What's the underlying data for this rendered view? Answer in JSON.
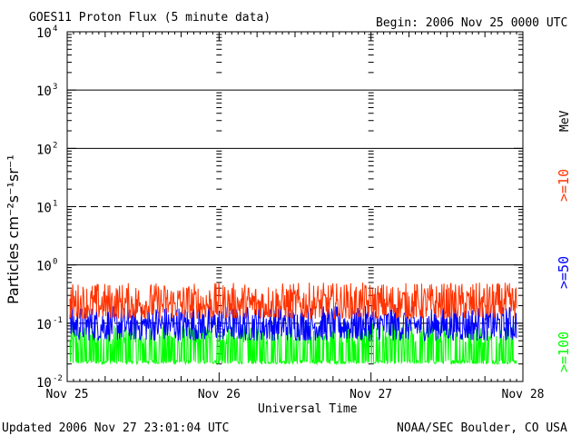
{
  "chart_data": {
    "type": "line",
    "title": "GOES11 Proton Flux (5 minute data)",
    "begin": "Begin: 2006 Nov 25 0000 UTC",
    "xlabel": "Universal Time",
    "ylabel": "Particles cm⁻²s⁻¹sr⁻¹",
    "yscale": "log",
    "ylim": [
      0.01,
      10000
    ],
    "y_ticks": [
      {
        "base": "10",
        "exp": "-2"
      },
      {
        "base": "10",
        "exp": "-1"
      },
      {
        "base": "10",
        "exp": "0"
      },
      {
        "base": "10",
        "exp": "1"
      },
      {
        "base": "10",
        "exp": "2"
      },
      {
        "base": "10",
        "exp": "3"
      },
      {
        "base": "10",
        "exp": "4"
      }
    ],
    "x_ticks": [
      "Nov 25",
      "Nov 26",
      "Nov 27",
      "Nov 28"
    ],
    "xlim": [
      "2006-11-25",
      "2006-11-28"
    ],
    "unit_label": "MeV",
    "series": [
      {
        "name": ">=10",
        "color": "#ff3300",
        "typical_range": [
          0.12,
          0.5
        ]
      },
      {
        "name": ">=50",
        "color": "#0000ff",
        "typical_range": [
          0.05,
          0.2
        ]
      },
      {
        "name": ">=100",
        "color": "#00ff00",
        "typical_range": [
          0.02,
          0.1
        ]
      }
    ],
    "dashed_gridlines": [
      "1e-1",
      "1e1"
    ],
    "solid_gridlines": [
      "1e0",
      "1e2",
      "1e3"
    ]
  },
  "footer": {
    "updated": "Updated 2006 Nov 27 23:01:04 UTC",
    "source": "NOAA/SEC Boulder, CO USA"
  }
}
